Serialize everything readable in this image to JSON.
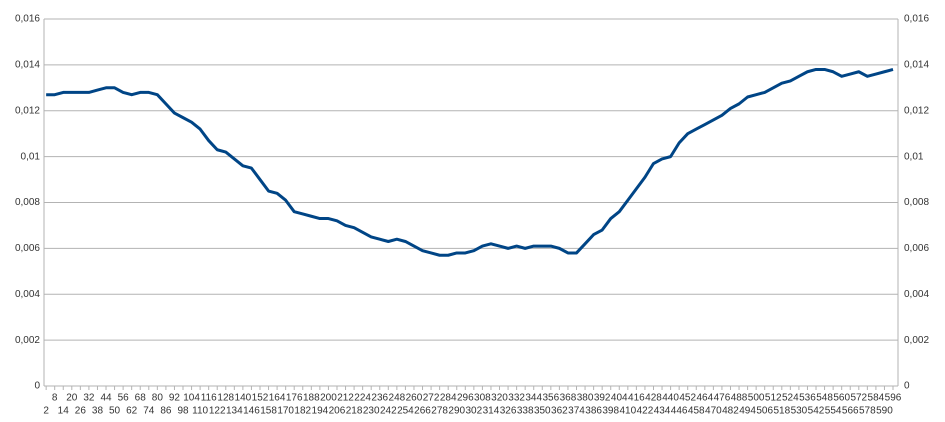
{
  "chart_data": {
    "type": "line",
    "color": "#004586",
    "x": [
      2,
      8,
      14,
      20,
      26,
      32,
      38,
      44,
      50,
      56,
      62,
      68,
      74,
      80,
      86,
      92,
      98,
      104,
      110,
      116,
      122,
      128,
      134,
      140,
      146,
      152,
      158,
      164,
      170,
      176,
      182,
      188,
      194,
      200,
      206,
      212,
      218,
      224,
      230,
      236,
      242,
      248,
      254,
      260,
      266,
      272,
      278,
      284,
      290,
      296,
      302,
      308,
      314,
      320,
      326,
      332,
      338,
      344,
      350,
      356,
      362,
      368,
      374,
      380,
      386,
      392,
      398,
      404,
      410,
      416,
      422,
      428,
      434,
      440,
      446,
      452,
      458,
      464,
      470,
      476,
      482,
      488,
      494,
      500,
      506,
      512,
      518,
      524,
      530,
      536,
      542,
      548,
      554,
      560,
      566,
      572,
      578,
      584,
      590,
      596
    ],
    "values": [
      0.0127,
      0.0127,
      0.0128,
      0.0128,
      0.0128,
      0.0128,
      0.0129,
      0.013,
      0.013,
      0.0128,
      0.0127,
      0.0128,
      0.0128,
      0.0127,
      0.0123,
      0.0119,
      0.0117,
      0.0115,
      0.0112,
      0.0107,
      0.0103,
      0.0102,
      0.0099,
      0.0096,
      0.0095,
      0.009,
      0.0085,
      0.0084,
      0.0081,
      0.0076,
      0.0075,
      0.0074,
      0.0073,
      0.0073,
      0.0072,
      0.007,
      0.0069,
      0.0067,
      0.0065,
      0.0064,
      0.0063,
      0.0064,
      0.0063,
      0.0061,
      0.0059,
      0.0058,
      0.0057,
      0.0057,
      0.0058,
      0.0058,
      0.0059,
      0.0061,
      0.0062,
      0.0061,
      0.006,
      0.0061,
      0.006,
      0.0061,
      0.0061,
      0.0061,
      0.006,
      0.0058,
      0.0058,
      0.0062,
      0.0066,
      0.0068,
      0.0073,
      0.0076,
      0.0081,
      0.0086,
      0.0091,
      0.0097,
      0.0099,
      0.01,
      0.0106,
      0.011,
      0.0112,
      0.0114,
      0.0116,
      0.0118,
      0.0121,
      0.0123,
      0.0126,
      0.0127,
      0.0128,
      0.013,
      0.0132,
      0.0133,
      0.0135,
      0.0137,
      0.0138,
      0.0138,
      0.0137,
      0.0135,
      0.0136,
      0.0137,
      0.0135,
      0.0136,
      0.0137,
      0.0138
    ],
    "xlim": [
      0.5,
      599.5
    ],
    "xticks": [
      2,
      8,
      14,
      20,
      26,
      32,
      38,
      44,
      50,
      56,
      62,
      68,
      74,
      80,
      86,
      92,
      98,
      104,
      110,
      116,
      122,
      128,
      134,
      140,
      146,
      152,
      158,
      164,
      170,
      176,
      182,
      188,
      194,
      200,
      206,
      212,
      218,
      224,
      230,
      236,
      242,
      248,
      254,
      260,
      266,
      272,
      278,
      284,
      290,
      296,
      302,
      308,
      314,
      320,
      326,
      332,
      338,
      344,
      350,
      356,
      362,
      368,
      374,
      380,
      386,
      392,
      398,
      404,
      410,
      416,
      422,
      428,
      434,
      440,
      446,
      452,
      458,
      464,
      470,
      476,
      482,
      488,
      494,
      500,
      506,
      512,
      518,
      524,
      530,
      536,
      542,
      548,
      554,
      560,
      566,
      572,
      578,
      584,
      590,
      596
    ],
    "ylim": [
      0,
      0.016
    ],
    "yticks": [
      0,
      {
        "value": 0.002,
        "label": "0,002"
      },
      {
        "value": 0.004,
        "label": "0,004"
      },
      {
        "value": 0.006,
        "label": "0,006"
      },
      {
        "value": 0.008,
        "label": "0,008"
      },
      {
        "value": 0.01,
        "label": "0,01"
      },
      {
        "value": 0.012,
        "label": "0,012"
      },
      {
        "value": 0.014,
        "label": "0,014"
      },
      {
        "value": 0.016,
        "label": "0,016"
      }
    ],
    "grid": true,
    "secondary_labels": true
  }
}
